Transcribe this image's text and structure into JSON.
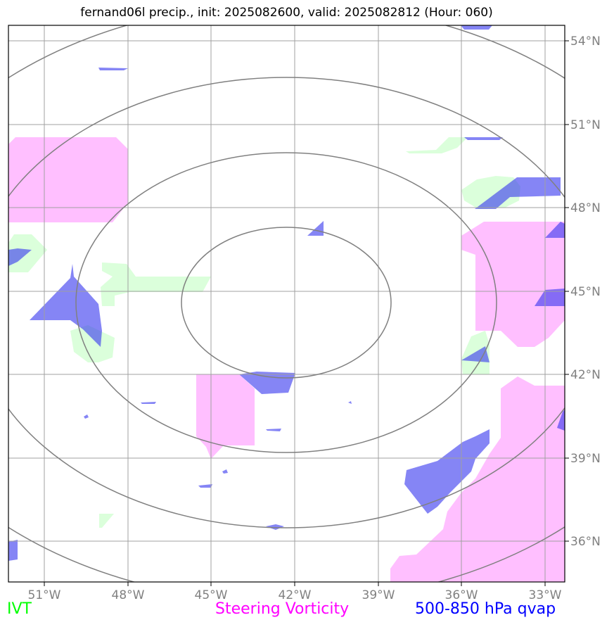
{
  "title": "fernand06l precip., init: 2025082600, valid: 2025082812 (Hour: 060)",
  "lon_labels": [
    "51°W",
    "48°W",
    "45°W",
    "42°W",
    "39°W",
    "36°W",
    "33°W"
  ],
  "lat_labels": [
    "54°N",
    "51°N",
    "48°N",
    "45°N",
    "42°N",
    "39°N",
    "36°N"
  ],
  "legend": {
    "ivt": "IVT",
    "vorticity": "Steering Vorticity",
    "qvap": "500-850 hPa qvap"
  },
  "colors": {
    "ivt": "#00ff00",
    "vorticity": "#ff00ff",
    "qvap": "#0000ff",
    "grid": "#a0a0a0",
    "rings": "#808080"
  }
}
